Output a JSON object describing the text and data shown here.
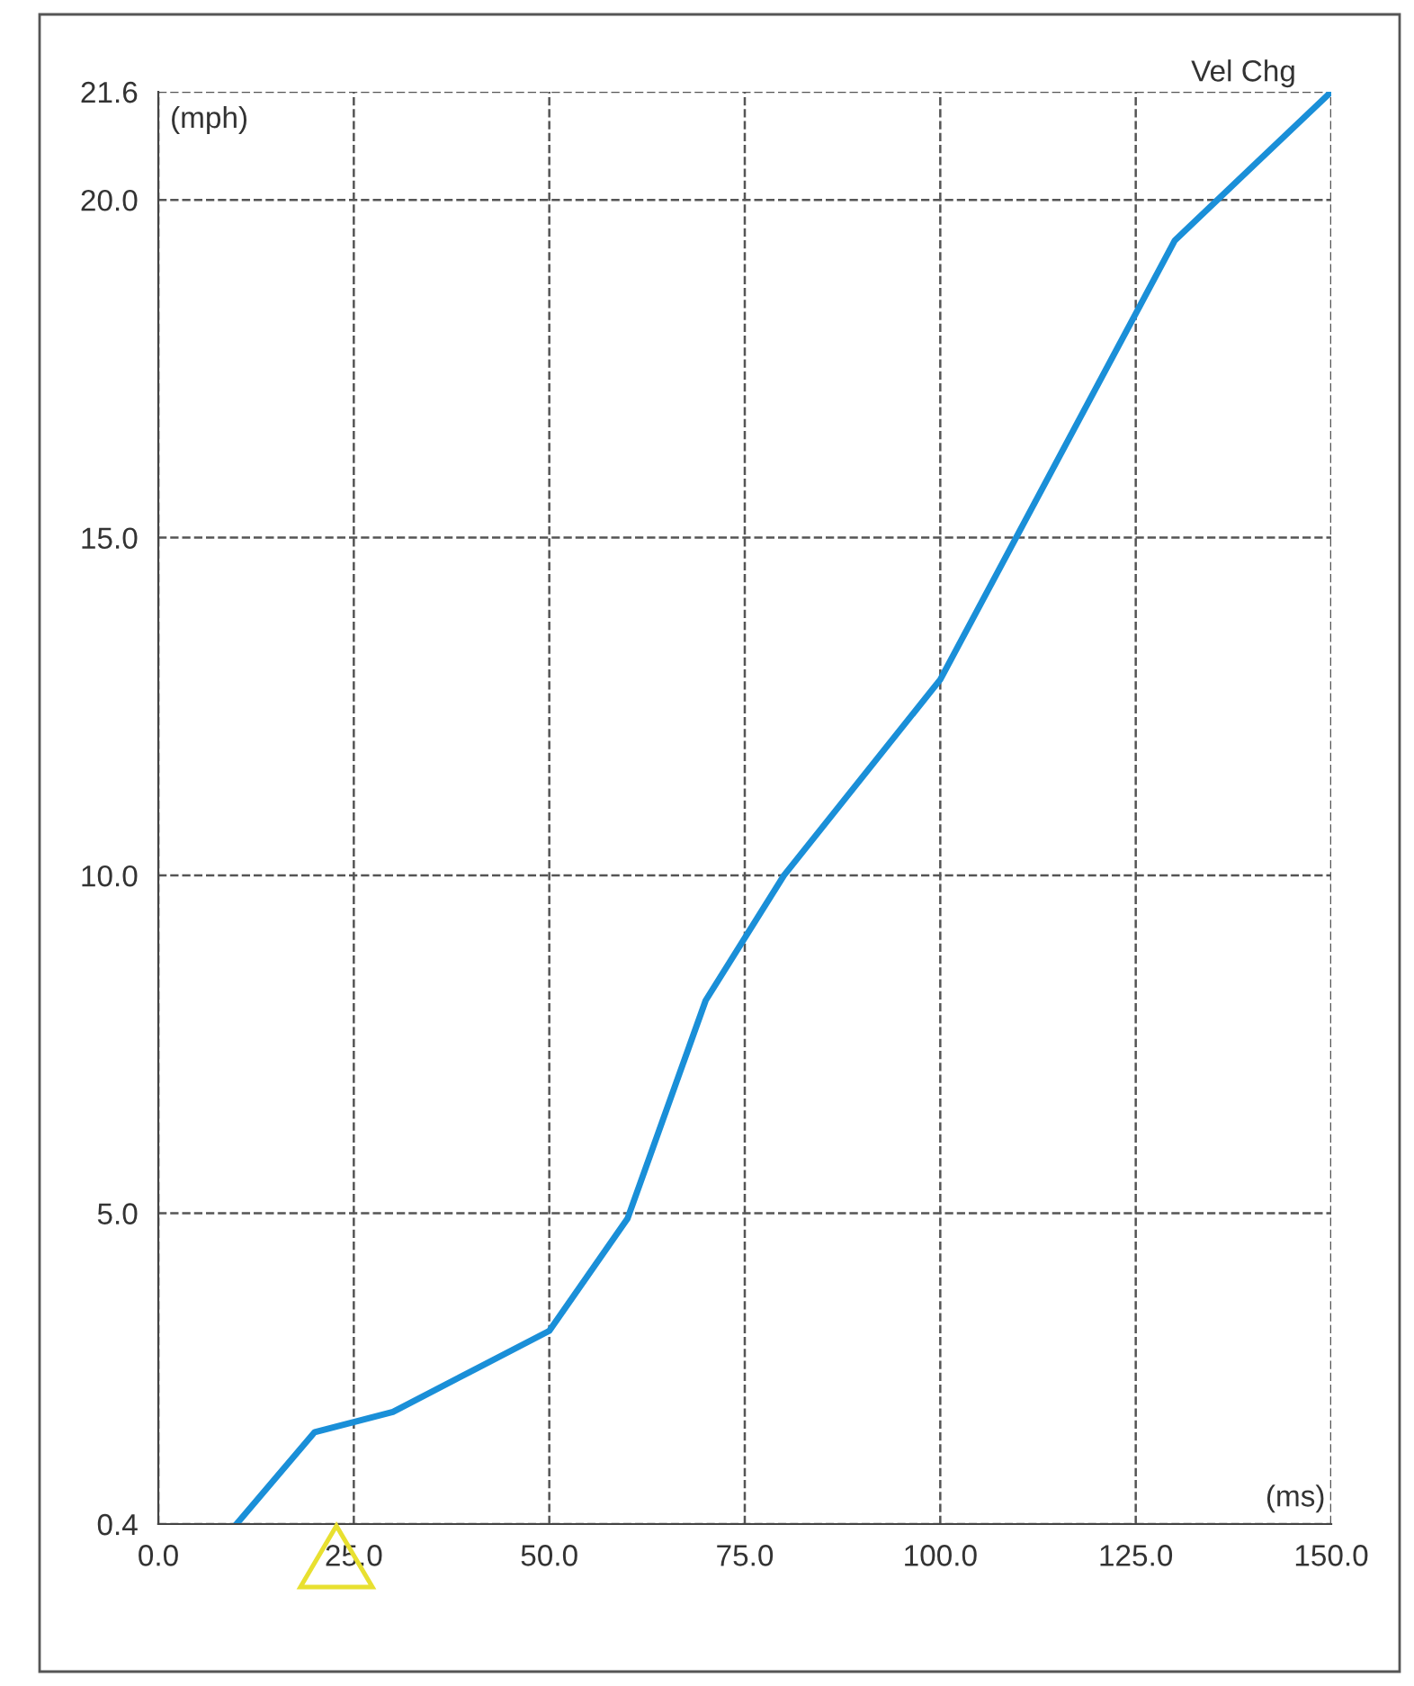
{
  "chart_data": {
    "type": "line",
    "title": "Vel Chg",
    "xlabel": "(ms)",
    "ylabel": "(mph)",
    "x": [
      10,
      20,
      30,
      50,
      60,
      70,
      80,
      100,
      130,
      140,
      150
    ],
    "series": [
      {
        "color": "#1a8fd8",
        "values": [
          0.4,
          1.76,
          2.06,
          3.26,
          4.92,
          8.15,
          10.0,
          12.9,
          19.4,
          20.5,
          21.6
        ]
      }
    ],
    "xlim": [
      0,
      150
    ],
    "ylim": [
      0.4,
      21.6
    ],
    "xticks": [
      {
        "value": 0,
        "label": "0.0"
      },
      {
        "value": 25,
        "label": "25.0"
      },
      {
        "value": 50,
        "label": "50.0"
      },
      {
        "value": 75,
        "label": "75.0"
      },
      {
        "value": 100,
        "label": "100.0"
      },
      {
        "value": 125,
        "label": "125.0"
      },
      {
        "value": 150,
        "label": "150.0"
      }
    ],
    "yticks": [
      {
        "value": 0.4,
        "label": "0.4"
      },
      {
        "value": 5,
        "label": "5.0"
      },
      {
        "value": 10,
        "label": "10.0"
      },
      {
        "value": 15,
        "label": "15.0"
      },
      {
        "value": 20,
        "label": "20.0"
      },
      {
        "value": 21.6,
        "label": "21.6"
      }
    ],
    "grid": true,
    "line_style": "solid",
    "marker": "none",
    "legend": false
  }
}
